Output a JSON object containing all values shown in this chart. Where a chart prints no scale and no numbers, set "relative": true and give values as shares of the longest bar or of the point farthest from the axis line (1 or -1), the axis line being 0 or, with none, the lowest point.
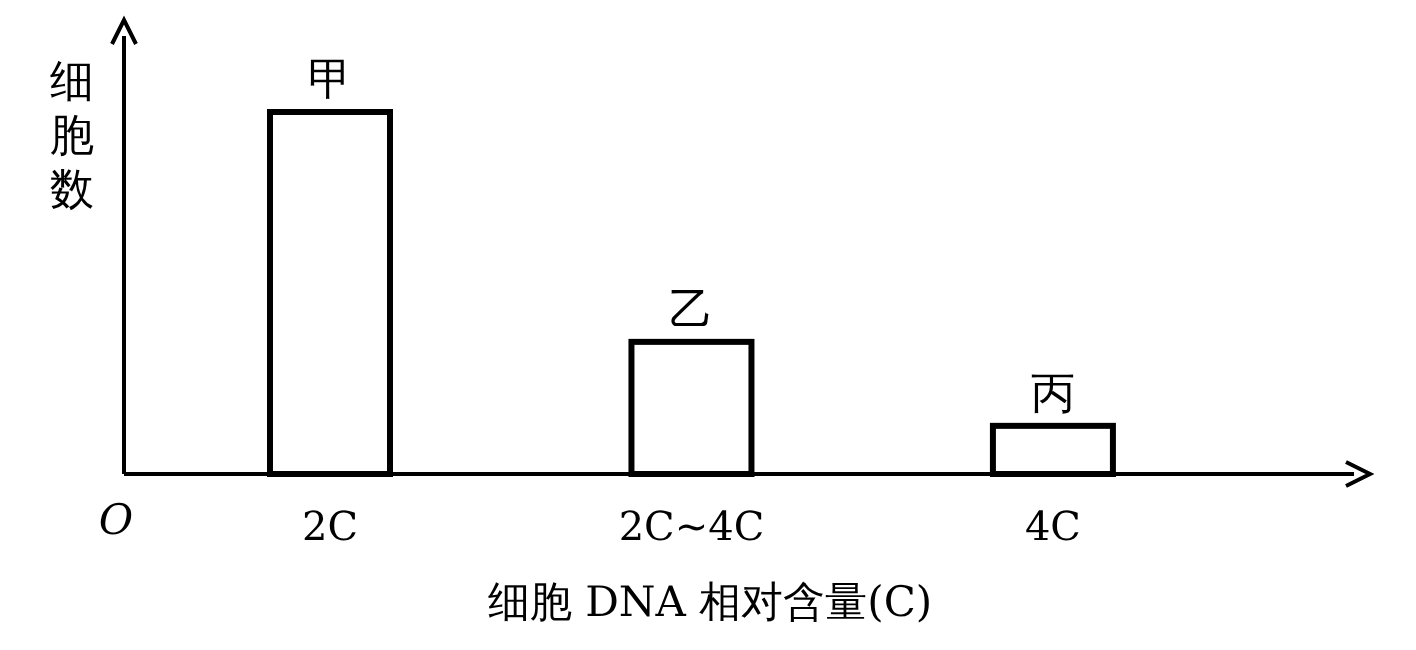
{
  "chart_data": {
    "type": "bar",
    "relative": true,
    "xlabel": "细胞 DNA 相对含量(C)",
    "ylabel": "细胞数",
    "categories": [
      "2C",
      "2C~4C",
      "4C"
    ],
    "values": [
      1,
      0.365,
      0.133
    ],
    "color": "#ffffff",
    "annotations": [
      "O",
      {
        "text": "甲",
        "x": "2C",
        "y": 1
      },
      {
        "text": "乙",
        "x": "2C~4C",
        "y": 0.365
      },
      {
        "text": "丙",
        "x": "4C",
        "y": 0.133
      }
    ]
  }
}
